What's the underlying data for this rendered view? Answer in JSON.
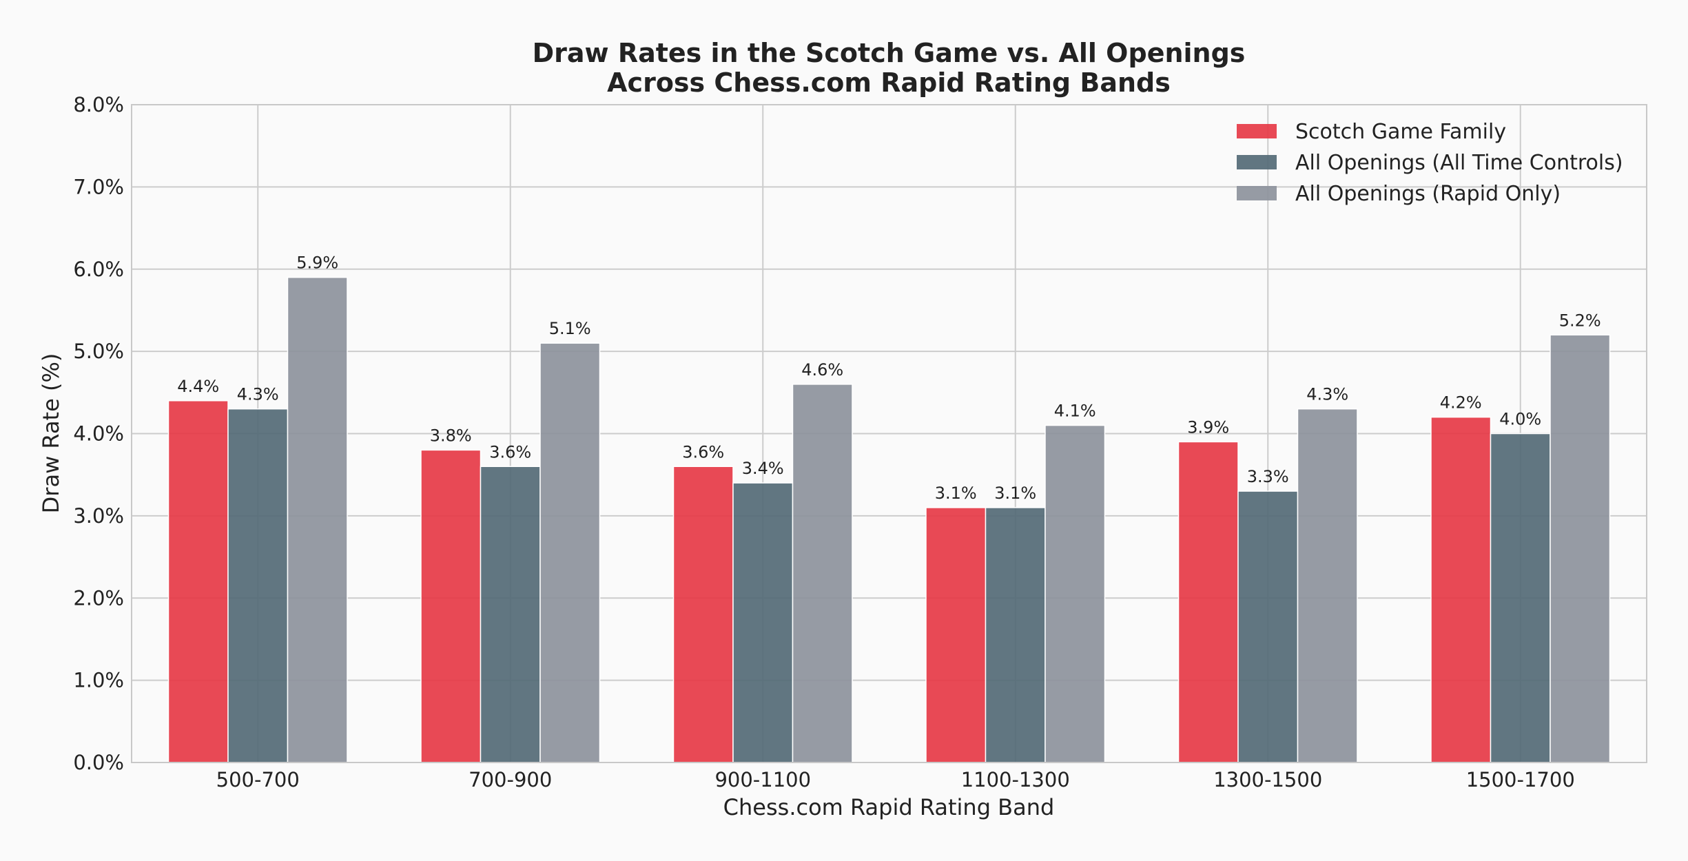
{
  "chart_data": {
    "type": "bar",
    "title_lines": [
      "Draw Rates in the Scotch Game vs. All Openings",
      "Across Chess.com Rapid Rating Bands"
    ],
    "xlabel": "Chess.com Rapid Rating Band",
    "ylabel": "Draw Rate (%)",
    "ylim": [
      0,
      8
    ],
    "yticks": [
      "0.0%",
      "1.0%",
      "2.0%",
      "3.0%",
      "4.0%",
      "5.0%",
      "6.0%",
      "7.0%",
      "8.0%"
    ],
    "grid": true,
    "legend_position": "top-right",
    "categories": [
      "500-700",
      "700-900",
      "900-1100",
      "1100-1300",
      "1300-1500",
      "1500-1700"
    ],
    "series": [
      {
        "name": "Scotch Game Family",
        "color": "#e63946",
        "values": [
          4.4,
          3.8,
          3.6,
          3.1,
          3.9,
          4.2
        ],
        "labels": [
          "4.4%",
          "3.8%",
          "3.6%",
          "3.1%",
          "3.9%",
          "4.2%"
        ]
      },
      {
        "name": "All Openings (All Time Controls)",
        "color": "#546a76",
        "values": [
          4.3,
          3.6,
          3.4,
          3.1,
          3.3,
          4.0
        ],
        "labels": [
          "4.3%",
          "3.6%",
          "3.4%",
          "3.1%",
          "3.3%",
          "4.0%"
        ]
      },
      {
        "name": "All Openings (Rapid Only)",
        "color": "#8d939c",
        "values": [
          5.9,
          5.1,
          4.6,
          4.1,
          4.3,
          5.2
        ],
        "labels": [
          "5.9%",
          "5.1%",
          "4.6%",
          "4.1%",
          "4.3%",
          "5.2%"
        ]
      }
    ]
  }
}
